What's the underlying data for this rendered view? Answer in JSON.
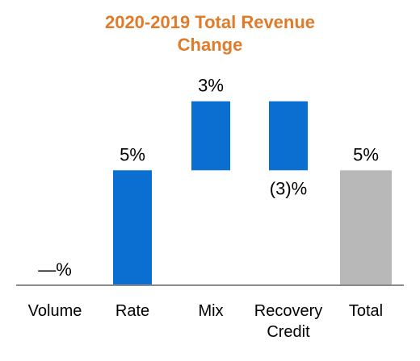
{
  "chart_data": {
    "type": "bar",
    "subtype": "waterfall",
    "title_lines": [
      "2020-2019 Total Revenue",
      "Change"
    ],
    "categories": [
      {
        "lines": [
          "Volume"
        ]
      },
      {
        "lines": [
          "Rate"
        ]
      },
      {
        "lines": [
          "Mix"
        ]
      },
      {
        "lines": [
          "Recovery",
          "Credit"
        ]
      },
      {
        "lines": [
          "Total"
        ]
      }
    ],
    "values": [
      0,
      5,
      3,
      -3,
      5
    ],
    "data_labels": [
      "—%",
      "5%",
      "3%",
      "(3)%",
      "5%"
    ],
    "is_total": [
      false,
      false,
      false,
      false,
      true
    ],
    "ylim": [
      0,
      8.2
    ],
    "grid": false,
    "legend": "none",
    "colors": {
      "title": "#e07b2a",
      "bar": "#0a6fd1",
      "total": "#b8b8b8",
      "axis": "#8a8a8a"
    }
  }
}
